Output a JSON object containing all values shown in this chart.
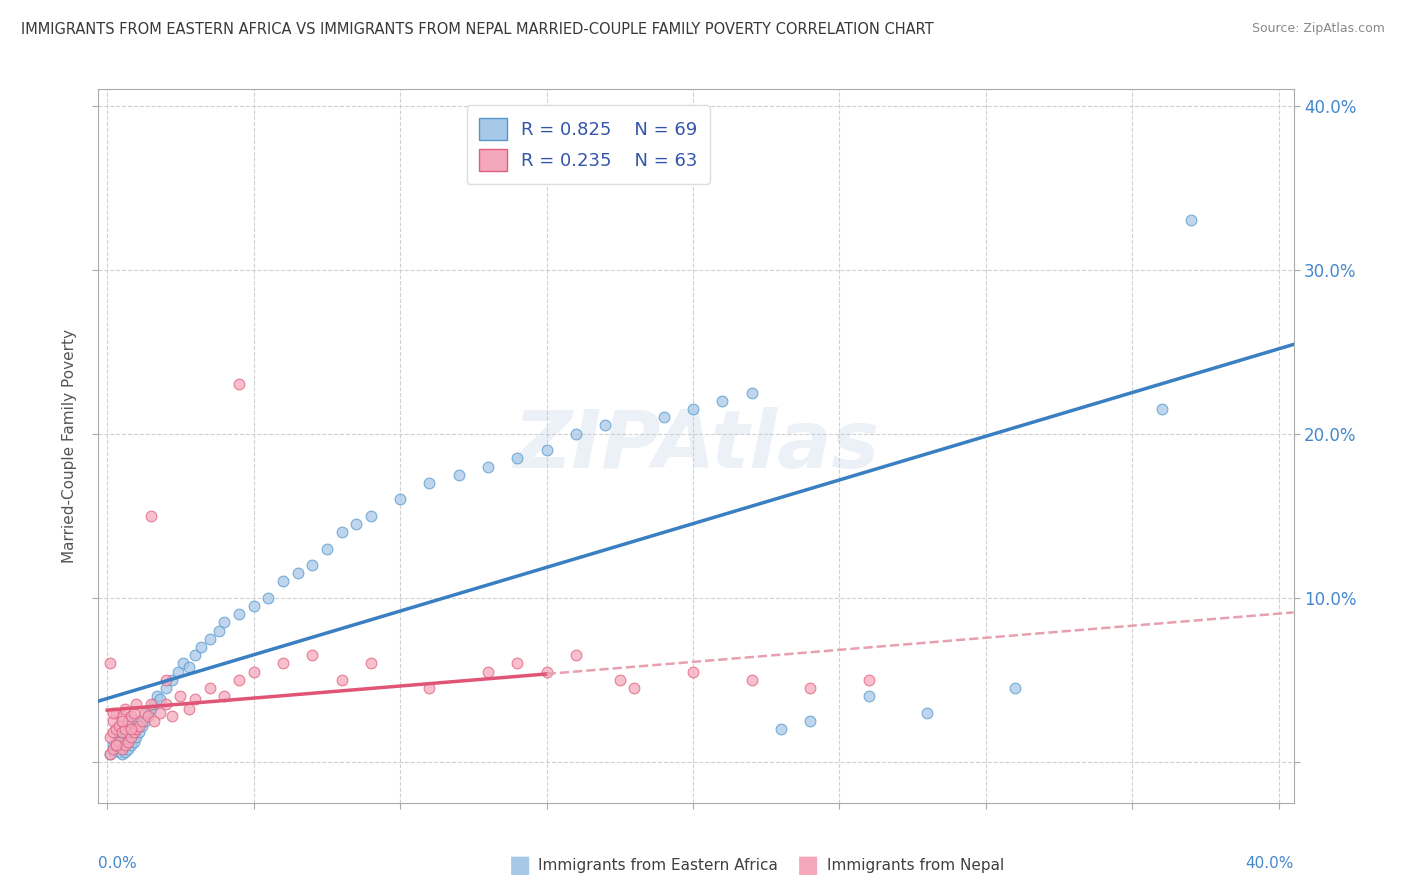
{
  "title": "IMMIGRANTS FROM EASTERN AFRICA VS IMMIGRANTS FROM NEPAL MARRIED-COUPLE FAMILY POVERTY CORRELATION CHART",
  "source": "Source: ZipAtlas.com",
  "ylabel": "Married-Couple Family Poverty",
  "series1_name": "Immigrants from Eastern Africa",
  "series2_name": "Immigrants from Nepal",
  "series1_color": "#a8c8e8",
  "series2_color": "#f5a8bc",
  "series1_edge_color": "#5599cc",
  "series2_edge_color": "#e06080",
  "series1_line_color": "#3a7fc1",
  "series2_line_color": "#e05575",
  "series2_dashed_color": "#e8a0b0",
  "series1_R": 0.825,
  "series1_N": 69,
  "series2_R": 0.235,
  "series2_N": 63,
  "xlim_min": -0.003,
  "xlim_max": 0.405,
  "ylim_min": -0.025,
  "ylim_max": 0.41,
  "watermark": "ZIPAtlas",
  "background_color": "#ffffff",
  "grid_color": "#cccccc",
  "title_color": "#383838",
  "legend_R_color": "#3355aa",
  "right_tick_color": "#4488cc",
  "series1_x": [
    0.001,
    0.002,
    0.003,
    0.003,
    0.004,
    0.004,
    0.004,
    0.005,
    0.005,
    0.005,
    0.006,
    0.006,
    0.006,
    0.007,
    0.007,
    0.007,
    0.008,
    0.008,
    0.009,
    0.009,
    0.01,
    0.01,
    0.011,
    0.012,
    0.013,
    0.014,
    0.015,
    0.016,
    0.017,
    0.018,
    0.02,
    0.022,
    0.024,
    0.026,
    0.028,
    0.03,
    0.032,
    0.035,
    0.038,
    0.04,
    0.045,
    0.05,
    0.055,
    0.06,
    0.065,
    0.07,
    0.075,
    0.08,
    0.085,
    0.09,
    0.1,
    0.11,
    0.12,
    0.13,
    0.14,
    0.15,
    0.16,
    0.17,
    0.19,
    0.2,
    0.21,
    0.22,
    0.23,
    0.24,
    0.26,
    0.28,
    0.31,
    0.36,
    0.37
  ],
  "series1_y": [
    0.005,
    0.01,
    0.008,
    0.012,
    0.006,
    0.01,
    0.015,
    0.005,
    0.012,
    0.018,
    0.006,
    0.015,
    0.02,
    0.008,
    0.018,
    0.025,
    0.01,
    0.02,
    0.012,
    0.022,
    0.015,
    0.025,
    0.018,
    0.022,
    0.025,
    0.03,
    0.032,
    0.035,
    0.04,
    0.038,
    0.045,
    0.05,
    0.055,
    0.06,
    0.058,
    0.065,
    0.07,
    0.075,
    0.08,
    0.085,
    0.09,
    0.095,
    0.1,
    0.11,
    0.115,
    0.12,
    0.13,
    0.14,
    0.145,
    0.15,
    0.16,
    0.17,
    0.175,
    0.18,
    0.185,
    0.19,
    0.2,
    0.205,
    0.21,
    0.215,
    0.22,
    0.225,
    0.02,
    0.025,
    0.04,
    0.03,
    0.045,
    0.215,
    0.33
  ],
  "series2_x": [
    0.001,
    0.001,
    0.002,
    0.002,
    0.002,
    0.003,
    0.003,
    0.003,
    0.004,
    0.004,
    0.005,
    0.005,
    0.005,
    0.006,
    0.006,
    0.006,
    0.007,
    0.007,
    0.008,
    0.008,
    0.009,
    0.009,
    0.01,
    0.01,
    0.011,
    0.012,
    0.013,
    0.014,
    0.015,
    0.016,
    0.018,
    0.02,
    0.022,
    0.025,
    0.028,
    0.03,
    0.035,
    0.04,
    0.045,
    0.05,
    0.06,
    0.07,
    0.08,
    0.09,
    0.11,
    0.13,
    0.14,
    0.15,
    0.16,
    0.175,
    0.18,
    0.2,
    0.22,
    0.24,
    0.26,
    0.045,
    0.02,
    0.015,
    0.008,
    0.005,
    0.003,
    0.002,
    0.001
  ],
  "series2_y": [
    0.005,
    0.015,
    0.008,
    0.018,
    0.025,
    0.01,
    0.02,
    0.03,
    0.012,
    0.022,
    0.008,
    0.018,
    0.028,
    0.01,
    0.02,
    0.032,
    0.012,
    0.025,
    0.015,
    0.028,
    0.018,
    0.03,
    0.02,
    0.035,
    0.022,
    0.025,
    0.03,
    0.028,
    0.035,
    0.025,
    0.03,
    0.035,
    0.028,
    0.04,
    0.032,
    0.038,
    0.045,
    0.04,
    0.05,
    0.055,
    0.06,
    0.065,
    0.05,
    0.06,
    0.045,
    0.055,
    0.06,
    0.055,
    0.065,
    0.05,
    0.045,
    0.055,
    0.05,
    0.045,
    0.05,
    0.23,
    0.05,
    0.15,
    0.02,
    0.025,
    0.01,
    0.03,
    0.06
  ]
}
